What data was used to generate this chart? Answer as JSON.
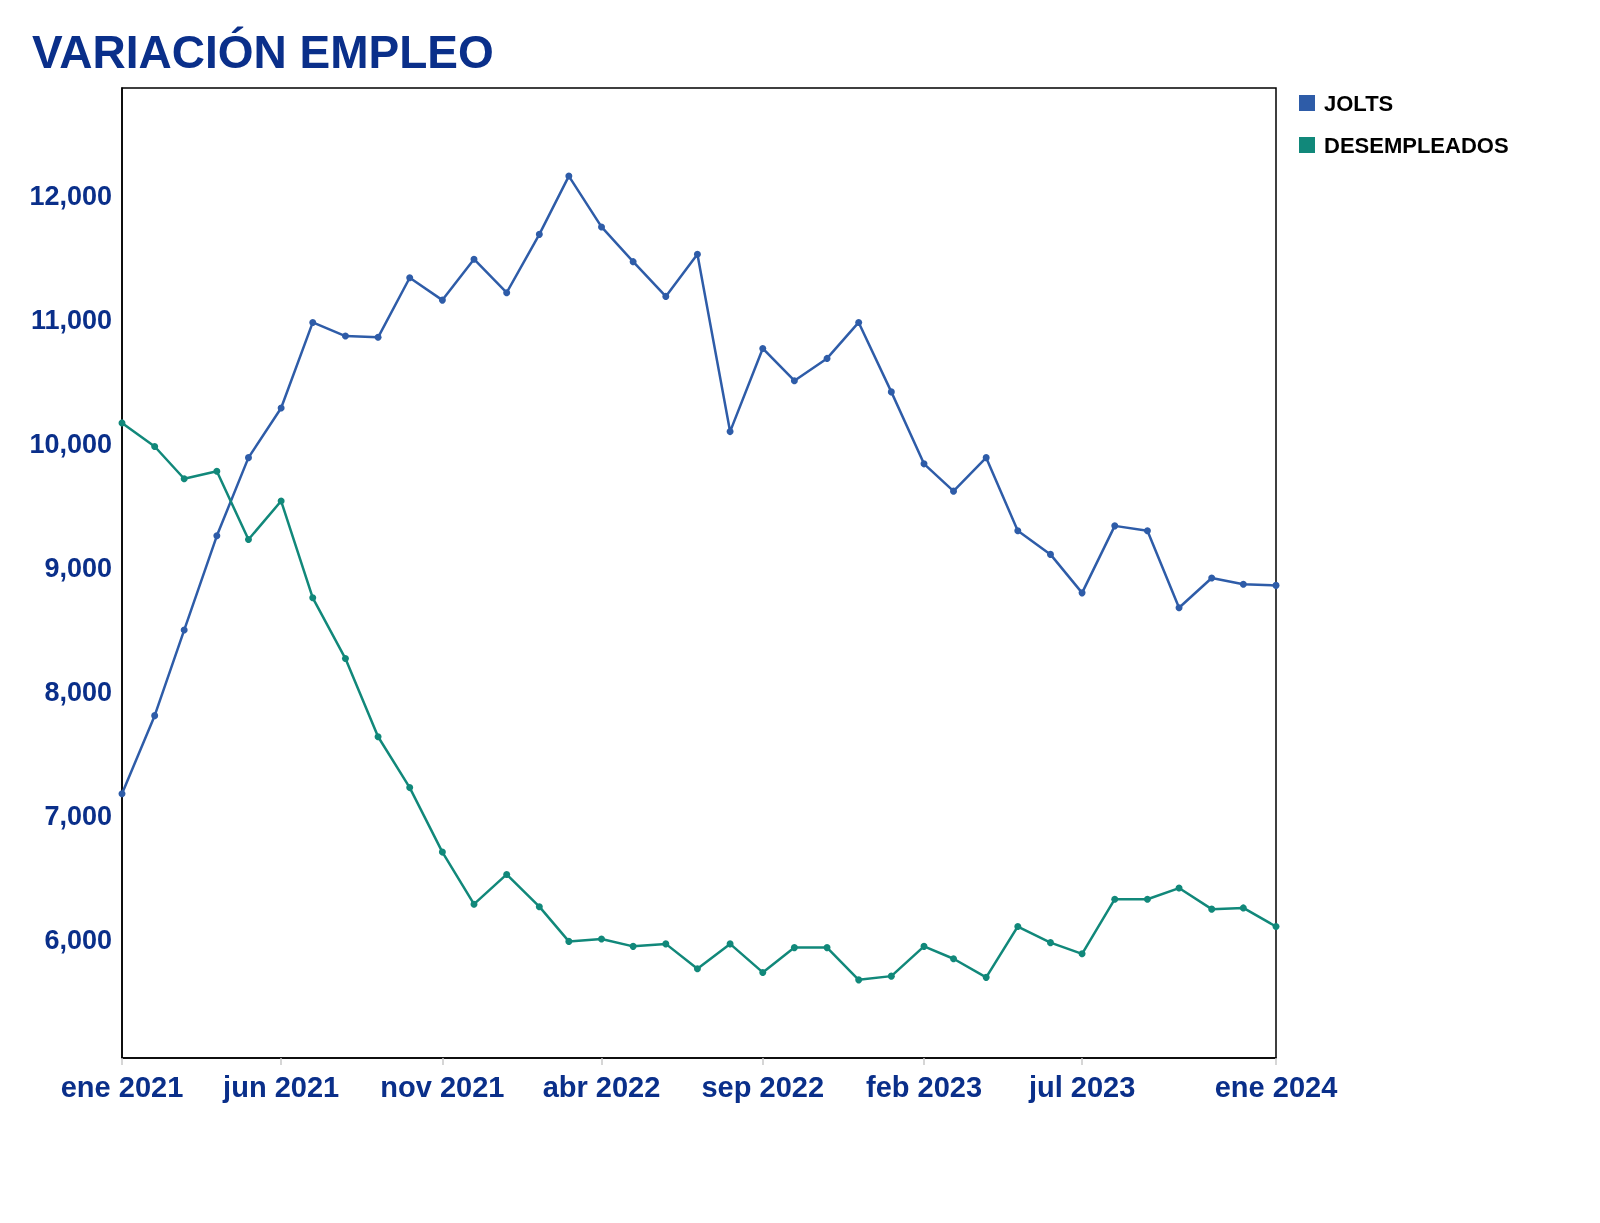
{
  "chart_data": {
    "type": "line",
    "title": "VARIACIÓN EMPLEO",
    "x": [
      "2021-01",
      "2021-02",
      "2021-03",
      "2021-04",
      "2021-05",
      "2021-06",
      "2021-07",
      "2021-08",
      "2021-09",
      "2021-10",
      "2021-11",
      "2021-12",
      "2022-01",
      "2022-02",
      "2022-03",
      "2022-04",
      "2022-05",
      "2022-06",
      "2022-07",
      "2022-08",
      "2022-09",
      "2022-10",
      "2022-11",
      "2022-12",
      "2023-01",
      "2023-02",
      "2023-03",
      "2023-04",
      "2023-05",
      "2023-06",
      "2023-07",
      "2023-08",
      "2023-09",
      "2023-10",
      "2023-11",
      "2023-12",
      "2024-01"
    ],
    "series": [
      {
        "name": "JOLTS",
        "color": "#2e5ca8",
        "values": [
          7180,
          7810,
          8500,
          9260,
          9890,
          10290,
          10980,
          10870,
          10860,
          11340,
          11160,
          11490,
          11220,
          11690,
          12160,
          11750,
          11470,
          11190,
          11530,
          10100,
          10770,
          10510,
          10690,
          10980,
          10420,
          9840,
          9620,
          9890,
          9300,
          9110,
          8800,
          9340,
          9300,
          8680,
          8920,
          8870,
          8860
        ]
      },
      {
        "name": "DESEMPLEADOS",
        "color": "#11887a",
        "values": [
          10170,
          9980,
          9720,
          9780,
          9230,
          9540,
          8760,
          8270,
          7640,
          7230,
          6710,
          6290,
          6530,
          6270,
          5990,
          6010,
          5950,
          5970,
          5770,
          5970,
          5740,
          5940,
          5940,
          5680,
          5710,
          5950,
          5850,
          5700,
          6110,
          5980,
          5890,
          6330,
          6330,
          6420,
          6250,
          6260,
          6110
        ]
      }
    ],
    "xlim": [
      "2021-01",
      "2024-01"
    ],
    "xticks": [
      {
        "value": "2021-01",
        "label": "ene 2021"
      },
      {
        "value": "2021-06",
        "label": "jun 2021"
      },
      {
        "value": "2021-11",
        "label": "nov 2021"
      },
      {
        "value": "2022-04",
        "label": "abr 2022"
      },
      {
        "value": "2022-09",
        "label": "sep 2022"
      },
      {
        "value": "2023-02",
        "label": "feb 2023"
      },
      {
        "value": "2023-07",
        "label": "jul 2023"
      },
      {
        "value": "2024-01",
        "label": "ene 2024"
      }
    ],
    "ylim": [
      5050,
      12870
    ],
    "yticks": [
      {
        "value": 6000,
        "label": "6,000"
      },
      {
        "value": 7000,
        "label": "7,000"
      },
      {
        "value": 8000,
        "label": "8,000"
      },
      {
        "value": 9000,
        "label": "9,000"
      },
      {
        "value": 10000,
        "label": "10,000"
      },
      {
        "value": 11000,
        "label": "11,000"
      },
      {
        "value": 12000,
        "label": "12,000"
      }
    ],
    "grid": false,
    "legend": "top right",
    "marker": "circle",
    "line_style": "solid"
  }
}
